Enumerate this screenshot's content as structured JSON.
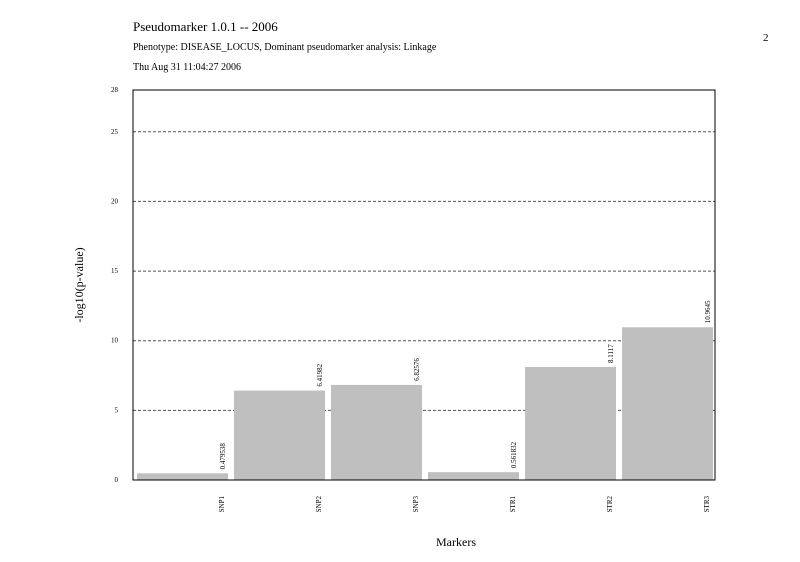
{
  "header": {
    "title": "Pseudomarker 1.0.1 -- 2006",
    "subtitle": "Phenotype: DISEASE_LOCUS, Dominant pseudomarker analysis: Linkage",
    "timestamp": "Thu Aug 31 11:04:27 2006",
    "page_number": "2"
  },
  "chart_data": {
    "type": "bar",
    "categories": [
      "SNP1",
      "SNP2",
      "SNP3",
      "STR1",
      "STR2",
      "STR3"
    ],
    "values": [
      0.479538,
      6.41982,
      6.82576,
      0.561832,
      8.1117,
      10.9645
    ],
    "value_labels": [
      "0.479538",
      "6.41982",
      "6.82576",
      "0.561832",
      "8.1117",
      "10.9645"
    ],
    "title": "",
    "xlabel": "Markers",
    "ylabel": "-log10(p-value)",
    "ylim": [
      0,
      28
    ],
    "yticks": [
      0,
      5,
      10,
      15,
      20,
      25,
      28
    ],
    "gridlines": [
      5,
      10,
      15,
      20,
      25
    ],
    "grid": "dashed horizontal",
    "bar_color": "#bfbfbf"
  }
}
